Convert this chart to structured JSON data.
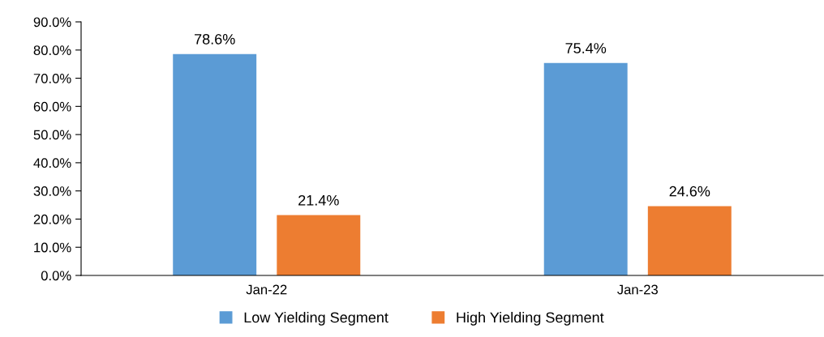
{
  "chart_data": {
    "type": "bar",
    "categories": [
      "Jan-22",
      "Jan-23"
    ],
    "series": [
      {
        "name": "Low Yielding Segment",
        "color": "#5b9bd5",
        "values": [
          78.6,
          75.4
        ],
        "value_labels": [
          "78.6%",
          "75.4%"
        ]
      },
      {
        "name": "High Yielding Segment",
        "color": "#ed7d31",
        "values": [
          21.4,
          24.6
        ],
        "value_labels": [
          "21.4%",
          "24.6%"
        ]
      }
    ],
    "ylim": [
      0,
      90
    ],
    "yticks": [
      {
        "value": 0,
        "label": "0.0%"
      },
      {
        "value": 10,
        "label": "10.0%"
      },
      {
        "value": 20,
        "label": "20.0%"
      },
      {
        "value": 30,
        "label": "30.0%"
      },
      {
        "value": 40,
        "label": "40.0%"
      },
      {
        "value": 50,
        "label": "50.0%"
      },
      {
        "value": 60,
        "label": "60.0%"
      },
      {
        "value": 70,
        "label": "70.0%"
      },
      {
        "value": 80,
        "label": "80.0%"
      },
      {
        "value": 90,
        "label": "90.0%"
      }
    ],
    "grid": false,
    "legend": "bottom"
  }
}
